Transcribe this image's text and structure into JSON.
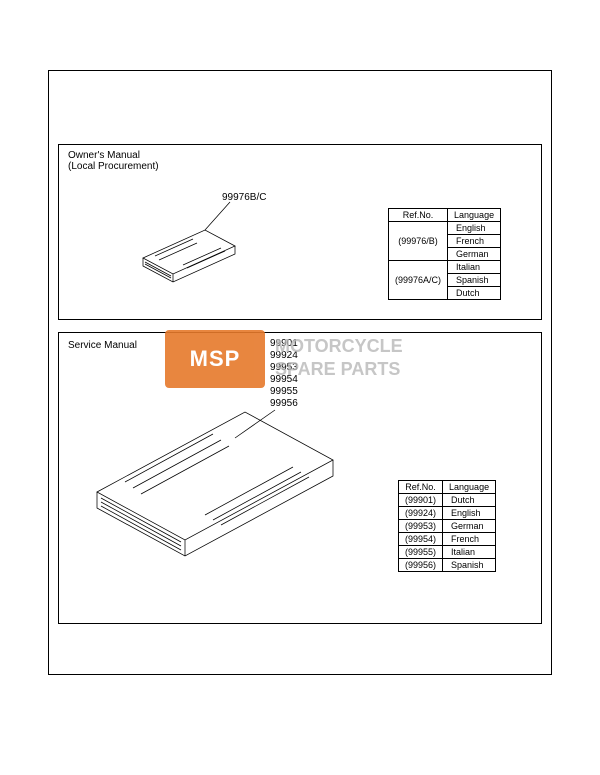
{
  "panel_top": {
    "title": "Owner's Manual\n(Local Procurement)",
    "callout": "99976B/C",
    "table": {
      "headers": [
        "Ref.No.",
        "Language"
      ],
      "groups": [
        {
          "ref": "(99976/B)",
          "langs": [
            "English",
            "French",
            "German"
          ]
        },
        {
          "ref": "(99976A/C)",
          "langs": [
            "Italian",
            "Spanish",
            "Dutch"
          ]
        }
      ]
    }
  },
  "panel_bottom": {
    "title": "Service Manual",
    "callouts": [
      "99901",
      "99924",
      "99953",
      "99954",
      "99955",
      "99956"
    ],
    "table": {
      "headers": [
        "Ref.No.",
        "Language"
      ],
      "rows": [
        {
          "ref": "(99901)",
          "lang": "Dutch"
        },
        {
          "ref": "(99924)",
          "lang": "English"
        },
        {
          "ref": "(99953)",
          "lang": "German"
        },
        {
          "ref": "(99954)",
          "lang": "French"
        },
        {
          "ref": "(99955)",
          "lang": "Italian"
        },
        {
          "ref": "(99956)",
          "lang": "Spanish"
        }
      ]
    }
  },
  "watermark": {
    "badge": "MSP",
    "line1": "MOTORCYCLE",
    "line2": "SPARE PARTS"
  },
  "colors": {
    "line": "#000000",
    "bg": "#ffffff",
    "badge": "#e6792b",
    "wm_text": "#b8b8b8"
  }
}
